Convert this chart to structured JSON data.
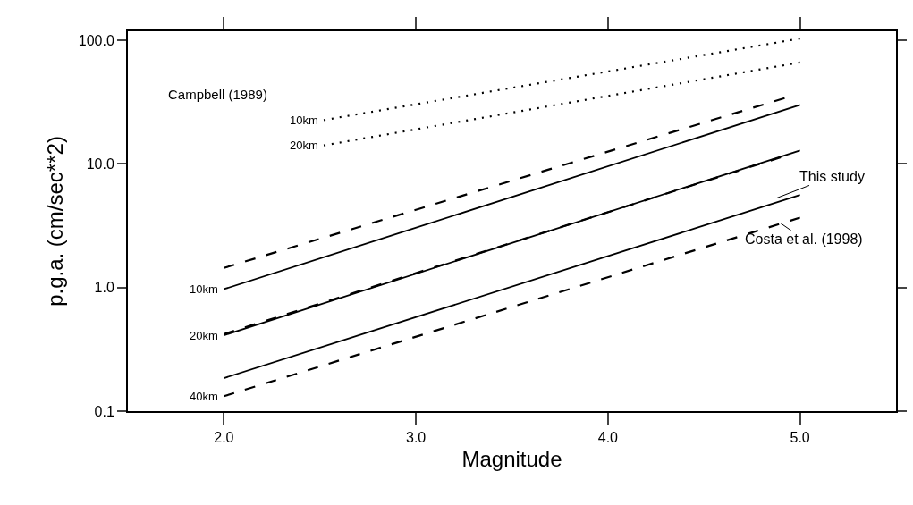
{
  "chart_data": {
    "type": "line",
    "xlabel": "Magnitude",
    "ylabel": "p.g.a. (cm/sec**2)",
    "log": "y",
    "grid": false,
    "marker": "none",
    "xlim": [
      1.5,
      5.5
    ],
    "xticks": [
      {
        "value": 2,
        "label": "2.0"
      },
      {
        "value": 3,
        "label": "3.0"
      },
      {
        "value": 4,
        "label": "4.0"
      },
      {
        "value": 5,
        "label": "5.0"
      }
    ],
    "ylim": [
      0.1,
      118
    ],
    "yticks": [
      {
        "value": 0.1,
        "label": "0.1"
      },
      {
        "value": 1,
        "label": "1.0"
      },
      {
        "value": 10,
        "label": "10.0"
      },
      {
        "value": 100,
        "label": "100.0"
      }
    ],
    "series": [
      {
        "color": "#000000",
        "line_style": "dotted",
        "x": [
          2.52,
          5
        ],
        "values": [
          22.6,
          103
        ]
      },
      {
        "color": "#000000",
        "line_style": "dotted",
        "x": [
          2.52,
          5
        ],
        "values": [
          14.1,
          66
        ]
      },
      {
        "color": "#000000",
        "line_style": "dashed",
        "x": [
          2,
          4.92
        ],
        "values": [
          1.44,
          34
        ]
      },
      {
        "color": "#000000",
        "line_style": "solid",
        "x": [
          2,
          5
        ],
        "values": [
          0.97,
          30
        ]
      },
      {
        "color": "#000000",
        "line_style": "dashed",
        "x": [
          2,
          4.9
        ],
        "values": [
          0.42,
          11.3
        ]
      },
      {
        "color": "#000000",
        "line_style": "solid",
        "x": [
          2,
          5
        ],
        "values": [
          0.41,
          12.8
        ]
      },
      {
        "color": "#000000",
        "line_style": "solid",
        "x": [
          2,
          5
        ],
        "values": [
          0.185,
          5.6
        ]
      },
      {
        "color": "#000000",
        "line_style": "dashed",
        "x": [
          2,
          5
        ],
        "values": [
          0.132,
          3.67
        ]
      }
    ],
    "annotations": [
      "Campbell (1989)",
      {
        "text": "10km",
        "x": 2.52,
        "y": 22.6
      },
      {
        "text": "20km",
        "x": 2.52,
        "y": 14.1
      },
      {
        "text": "10km",
        "x": 2,
        "y": 0.97
      },
      {
        "text": "20km",
        "x": 2,
        "y": 0.41
      },
      {
        "text": "40km",
        "x": 2,
        "y": 0.132
      },
      {
        "text": "This study",
        "x": 4.88,
        "y": 5.3
      },
      {
        "text": "Costa et al. (1998)",
        "x": 4.9,
        "y": 3.3
      }
    ]
  }
}
